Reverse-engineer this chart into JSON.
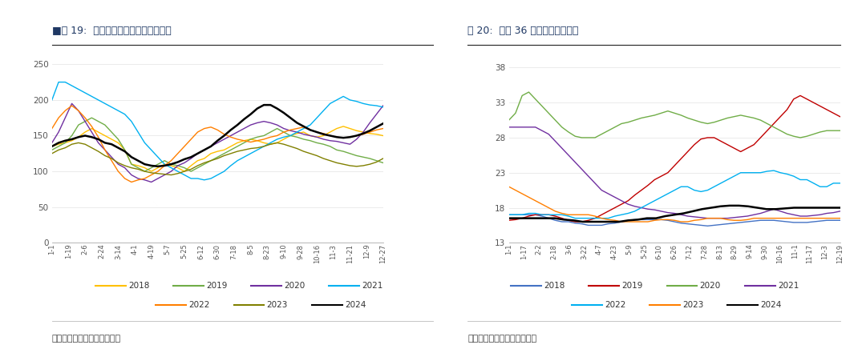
{
  "chart1_title": "■图 19:  寿光蔬菜价格指数（总指数）",
  "chart2_title": "图 20:  猪肉 36 个城市平均零售价",
  "source_text": "数据来源：银河期货，同花顺",
  "chart1_yticks": [
    0,
    50,
    100,
    150,
    200,
    250
  ],
  "chart1_ylim": [
    0,
    265
  ],
  "chart1_xticks": [
    "1-1",
    "1-19",
    "2-6",
    "2-24",
    "3-14",
    "4-1",
    "4-19",
    "5-7",
    "5-25",
    "6-12",
    "6-30",
    "7-18",
    "8-5",
    "8-23",
    "9-10",
    "9-28",
    "10-16",
    "11-3",
    "11-21",
    "12-9",
    "12-27"
  ],
  "chart2_yticks": [
    13,
    18,
    23,
    28,
    33,
    38
  ],
  "chart2_ylim": [
    13,
    40
  ],
  "chart2_xticks": [
    "1-1",
    "1-17",
    "2-2",
    "2-18",
    "3-6",
    "3-22",
    "4-7",
    "4-23",
    "5-9",
    "5-25",
    "6-10",
    "6-26",
    "7-12",
    "7-28",
    "8-13",
    "8-29",
    "9-14",
    "9-30",
    "10-16",
    "11-1",
    "11-17",
    "12-3",
    "12-19"
  ],
  "colors_chart1": {
    "2018": "#FFC000",
    "2019": "#70AD47",
    "2020": "#7030A0",
    "2021": "#00B0F0",
    "2022": "#FF7F00",
    "2023": "#808000",
    "2024": "#000000"
  },
  "colors_chart2": {
    "2018": "#4472C4",
    "2019": "#C00000",
    "2020": "#70AD47",
    "2021": "#7030A0",
    "2022": "#00B0F0",
    "2023": "#FF7F00",
    "2024": "#000000"
  },
  "chart1_data": {
    "2018": [
      135,
      138,
      140,
      143,
      148,
      155,
      160,
      155,
      150,
      145,
      140,
      130,
      110,
      108,
      105,
      100,
      105,
      110,
      108,
      105,
      100,
      108,
      115,
      118,
      125,
      128,
      130,
      135,
      140,
      143,
      145,
      143,
      140,
      138,
      140,
      145,
      150,
      153,
      155,
      150,
      148,
      150,
      155,
      160,
      163,
      160,
      157,
      155,
      153,
      152,
      150
    ],
    "2019": [
      130,
      135,
      140,
      150,
      165,
      170,
      175,
      170,
      165,
      155,
      145,
      130,
      110,
      105,
      100,
      105,
      110,
      115,
      110,
      108,
      105,
      100,
      105,
      110,
      115,
      120,
      125,
      130,
      135,
      140,
      145,
      148,
      150,
      155,
      160,
      155,
      150,
      148,
      145,
      143,
      140,
      138,
      135,
      130,
      128,
      125,
      122,
      120,
      118,
      115,
      112
    ],
    "2020": [
      140,
      155,
      175,
      195,
      185,
      170,
      155,
      140,
      130,
      120,
      110,
      105,
      95,
      90,
      88,
      85,
      90,
      95,
      100,
      108,
      112,
      118,
      125,
      130,
      135,
      140,
      145,
      150,
      155,
      160,
      165,
      168,
      170,
      168,
      165,
      160,
      157,
      155,
      152,
      150,
      148,
      145,
      143,
      142,
      140,
      138,
      145,
      155,
      168,
      180,
      192
    ],
    "2021": [
      200,
      225,
      225,
      220,
      215,
      210,
      205,
      200,
      195,
      190,
      185,
      180,
      170,
      155,
      140,
      130,
      120,
      110,
      105,
      100,
      95,
      90,
      90,
      88,
      90,
      95,
      100,
      108,
      115,
      120,
      125,
      130,
      135,
      140,
      145,
      148,
      150,
      155,
      160,
      165,
      175,
      185,
      195,
      200,
      205,
      200,
      198,
      195,
      193,
      192,
      190
    ],
    "2022": [
      160,
      175,
      185,
      192,
      185,
      175,
      163,
      148,
      130,
      115,
      100,
      90,
      85,
      88,
      90,
      95,
      100,
      108,
      115,
      125,
      135,
      145,
      155,
      160,
      162,
      158,
      152,
      148,
      145,
      143,
      141,
      143,
      145,
      148,
      150,
      155,
      158,
      160,
      162,
      158,
      155,
      153,
      150,
      148,
      147,
      148,
      150,
      152,
      155,
      158,
      160
    ],
    "2023": [
      125,
      130,
      133,
      138,
      140,
      138,
      133,
      128,
      122,
      118,
      112,
      108,
      105,
      103,
      100,
      98,
      97,
      96,
      95,
      97,
      100,
      103,
      108,
      112,
      115,
      118,
      122,
      125,
      128,
      130,
      132,
      133,
      135,
      138,
      140,
      138,
      135,
      132,
      128,
      125,
      122,
      118,
      115,
      112,
      110,
      108,
      107,
      108,
      110,
      113,
      118
    ],
    "2024": [
      135,
      140,
      143,
      145,
      148,
      150,
      148,
      145,
      140,
      138,
      133,
      128,
      120,
      115,
      110,
      108,
      107,
      108,
      110,
      113,
      117,
      120,
      125,
      130,
      135,
      143,
      150,
      158,
      165,
      173,
      180,
      188,
      193,
      193,
      188,
      182,
      175,
      168,
      163,
      158,
      155,
      152,
      150,
      148,
      147,
      148,
      150,
      153,
      157,
      162,
      167
    ]
  },
  "chart2_data": {
    "2018": [
      17.0,
      17.0,
      17.0,
      17.0,
      17.0,
      16.8,
      16.5,
      16.2,
      16.0,
      16.0,
      15.8,
      15.7,
      15.5,
      15.5,
      15.5,
      15.7,
      15.8,
      16.0,
      16.2,
      16.3,
      16.3,
      16.3,
      16.3,
      16.3,
      16.2,
      16.0,
      15.8,
      15.7,
      15.6,
      15.5,
      15.4,
      15.5,
      15.6,
      15.7,
      15.8,
      15.9,
      16.0,
      16.1,
      16.2,
      16.2,
      16.2,
      16.1,
      16.0,
      15.9,
      15.9,
      15.9,
      16.0,
      16.1,
      16.2,
      16.2,
      16.2
    ],
    "2019": [
      16.2,
      16.3,
      16.5,
      16.8,
      17.0,
      17.0,
      17.0,
      16.8,
      16.5,
      16.2,
      16.0,
      16.0,
      16.2,
      16.5,
      17.0,
      17.5,
      18.0,
      18.5,
      19.0,
      19.8,
      20.5,
      21.2,
      22.0,
      22.5,
      23.0,
      24.0,
      25.0,
      26.0,
      27.0,
      27.8,
      28.0,
      28.0,
      27.5,
      27.0,
      26.5,
      26.0,
      26.5,
      27.0,
      28.0,
      29.0,
      30.0,
      31.0,
      32.0,
      33.5,
      34.0,
      33.5,
      33.0,
      32.5,
      32.0,
      31.5,
      31.0
    ],
    "2020": [
      30.5,
      31.5,
      34.0,
      34.5,
      33.5,
      32.5,
      31.5,
      30.5,
      29.5,
      28.8,
      28.2,
      28.0,
      28.0,
      28.0,
      28.5,
      29.0,
      29.5,
      30.0,
      30.2,
      30.5,
      30.8,
      31.0,
      31.2,
      31.5,
      31.8,
      31.5,
      31.2,
      30.8,
      30.5,
      30.2,
      30.0,
      30.2,
      30.5,
      30.8,
      31.0,
      31.2,
      31.0,
      30.8,
      30.5,
      30.0,
      29.5,
      29.0,
      28.5,
      28.2,
      28.0,
      28.2,
      28.5,
      28.8,
      29.0,
      29.0,
      29.0
    ],
    "2021": [
      29.5,
      29.5,
      29.5,
      29.5,
      29.5,
      29.0,
      28.5,
      27.5,
      26.5,
      25.5,
      24.5,
      23.5,
      22.5,
      21.5,
      20.5,
      20.0,
      19.5,
      19.0,
      18.5,
      18.2,
      18.0,
      17.8,
      17.7,
      17.5,
      17.3,
      17.2,
      17.0,
      16.8,
      16.7,
      16.6,
      16.5,
      16.5,
      16.5,
      16.5,
      16.6,
      16.7,
      16.8,
      17.0,
      17.2,
      17.5,
      17.8,
      17.5,
      17.2,
      17.0,
      16.8,
      16.8,
      16.9,
      17.0,
      17.2,
      17.3,
      17.5
    ],
    "2022": [
      17.0,
      17.0,
      17.0,
      17.2,
      17.2,
      17.0,
      17.0,
      17.0,
      17.0,
      16.8,
      16.5,
      16.5,
      16.5,
      16.5,
      16.5,
      16.5,
      16.8,
      17.0,
      17.2,
      17.5,
      18.0,
      18.5,
      19.0,
      19.5,
      20.0,
      20.5,
      21.0,
      21.0,
      20.5,
      20.3,
      20.5,
      21.0,
      21.5,
      22.0,
      22.5,
      23.0,
      23.0,
      23.0,
      23.0,
      23.2,
      23.3,
      23.0,
      22.8,
      22.5,
      22.0,
      22.0,
      21.5,
      21.0,
      21.0,
      21.5,
      21.5
    ],
    "2023": [
      21.0,
      20.5,
      20.0,
      19.5,
      19.0,
      18.5,
      18.0,
      17.5,
      17.2,
      17.0,
      17.0,
      17.0,
      17.0,
      16.8,
      16.5,
      16.3,
      16.2,
      16.0,
      16.0,
      16.0,
      16.0,
      16.0,
      16.2,
      16.3,
      16.3,
      16.2,
      16.0,
      16.0,
      16.2,
      16.3,
      16.5,
      16.5,
      16.5,
      16.3,
      16.2,
      16.2,
      16.3,
      16.5,
      16.5,
      16.5,
      16.5,
      16.5,
      16.5,
      16.5,
      16.5,
      16.5,
      16.5,
      16.5,
      16.5,
      16.5,
      16.5
    ],
    "2024": [
      16.5,
      16.5,
      16.5,
      16.5,
      16.5,
      16.5,
      16.3,
      16.2,
      16.0,
      16.0,
      16.0,
      16.0,
      16.0,
      16.2,
      16.3,
      16.5,
      16.5,
      16.8,
      17.0,
      17.2,
      17.5,
      17.8,
      18.0,
      18.2,
      18.3,
      18.3,
      18.2,
      18.0,
      17.8,
      17.8,
      17.9,
      18.0,
      18.0,
      18.0,
      18.0,
      18.0,
      18.0
    ]
  },
  "bg_color": "#FFFFFF",
  "title_color": "#1F3864",
  "source_color": "#404040",
  "spine_color": "#AAAAAA",
  "grid_color": "#E8E8E8"
}
